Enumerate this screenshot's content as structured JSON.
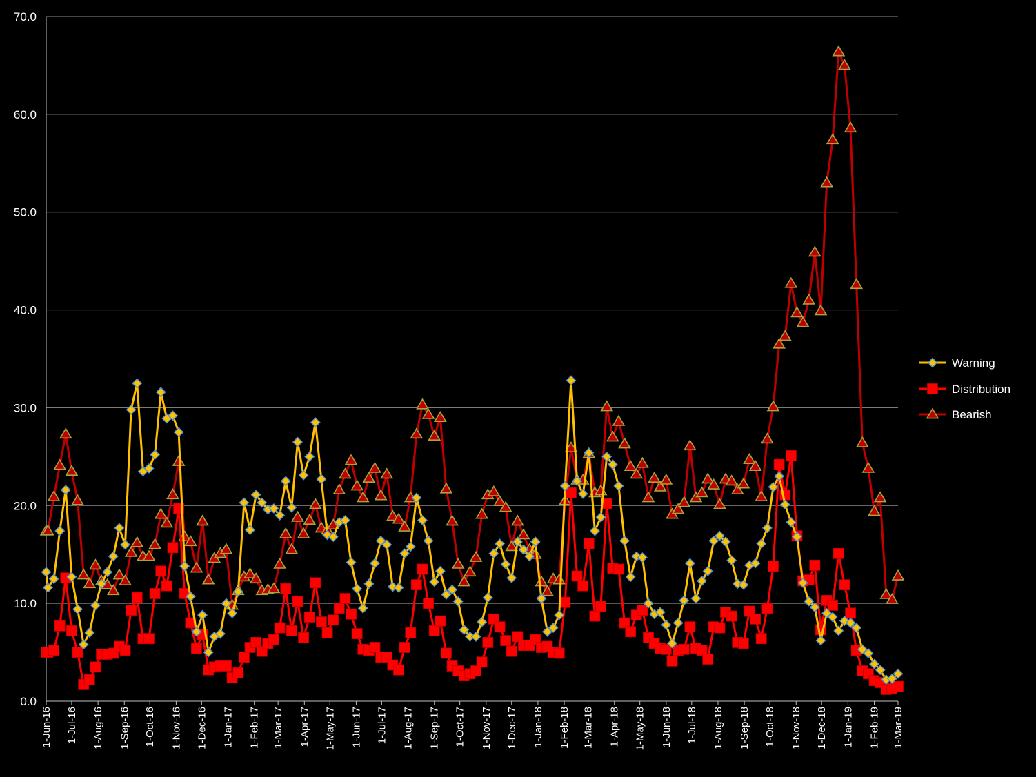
{
  "chart_data": {
    "type": "line",
    "title": "",
    "xlabel": "",
    "ylabel": "",
    "ylim": [
      0,
      70
    ],
    "yticks": [
      "0.0",
      "10.0",
      "20.0",
      "30.0",
      "40.0",
      "50.0",
      "60.0",
      "70.0"
    ],
    "grid": true,
    "legend_position": "right",
    "x_tick_labels": [
      "1-Jun-16",
      "1-Jul-16",
      "1-Aug-16",
      "1-Sep-16",
      "1-Oct-16",
      "1-Nov-16",
      "1-Dec-16",
      "1-Jan-17",
      "1-Feb-17",
      "1-Mar-17",
      "1-Apr-17",
      "1-May-17",
      "1-Jun-17",
      "1-Jul-17",
      "1-Aug-17",
      "1-Sep-17",
      "1-Oct-17",
      "1-Nov-17",
      "1-Dec-17",
      "1-Jan-18",
      "1-Feb-18",
      "1-Mar-18",
      "1-Apr-18",
      "1-May-18",
      "1-Jun-18",
      "1-Jul-18",
      "1-Aug-18",
      "1-Sep-18",
      "1-Oct-18",
      "1-Nov-18",
      "1-Dec-18",
      "1-Jan-19",
      "1-Feb-19",
      "1-Mar-19"
    ],
    "x": [
      "2016-06-01",
      "2016-06-03",
      "2016-06-10",
      "2016-06-17",
      "2016-06-24",
      "2016-07-01",
      "2016-07-08",
      "2016-07-15",
      "2016-07-22",
      "2016-07-29",
      "2016-08-05",
      "2016-08-12",
      "2016-08-19",
      "2016-08-26",
      "2016-09-02",
      "2016-09-09",
      "2016-09-16",
      "2016-09-23",
      "2016-09-30",
      "2016-10-07",
      "2016-10-14",
      "2016-10-21",
      "2016-10-28",
      "2016-11-04",
      "2016-11-11",
      "2016-11-18",
      "2016-11-25",
      "2016-12-02",
      "2016-12-09",
      "2016-12-16",
      "2016-12-23",
      "2016-12-30",
      "2017-01-06",
      "2017-01-13",
      "2017-01-20",
      "2017-01-27",
      "2017-02-03",
      "2017-02-10",
      "2017-02-17",
      "2017-02-24",
      "2017-03-03",
      "2017-03-10",
      "2017-03-17",
      "2017-03-24",
      "2017-03-31",
      "2017-04-07",
      "2017-04-14",
      "2017-04-21",
      "2017-04-28",
      "2017-05-05",
      "2017-05-12",
      "2017-05-19",
      "2017-05-26",
      "2017-06-02",
      "2017-06-09",
      "2017-06-16",
      "2017-06-23",
      "2017-06-30",
      "2017-07-07",
      "2017-07-14",
      "2017-07-21",
      "2017-07-28",
      "2017-08-04",
      "2017-08-11",
      "2017-08-18",
      "2017-08-25",
      "2017-09-01",
      "2017-09-08",
      "2017-09-15",
      "2017-09-22",
      "2017-09-29",
      "2017-10-06",
      "2017-10-13",
      "2017-10-20",
      "2017-10-27",
      "2017-11-03",
      "2017-11-10",
      "2017-11-17",
      "2017-11-24",
      "2017-12-01",
      "2017-12-08",
      "2017-12-15",
      "2017-12-22",
      "2017-12-29",
      "2018-01-05",
      "2018-01-12",
      "2018-01-19",
      "2018-01-26",
      "2018-02-02",
      "2018-02-09",
      "2018-02-16",
      "2018-02-23",
      "2018-03-02",
      "2018-03-09",
      "2018-03-16",
      "2018-03-23",
      "2018-03-30",
      "2018-04-06",
      "2018-04-13",
      "2018-04-20",
      "2018-04-27",
      "2018-05-04",
      "2018-05-11",
      "2018-05-18",
      "2018-05-25",
      "2018-06-01",
      "2018-06-08",
      "2018-06-15",
      "2018-06-22",
      "2018-06-29",
      "2018-07-06",
      "2018-07-13",
      "2018-07-20",
      "2018-07-27",
      "2018-08-03",
      "2018-08-10",
      "2018-08-17",
      "2018-08-24",
      "2018-08-31",
      "2018-09-07",
      "2018-09-14",
      "2018-09-21",
      "2018-09-28",
      "2018-10-05",
      "2018-10-12",
      "2018-10-19",
      "2018-10-26",
      "2018-11-02",
      "2018-11-09",
      "2018-11-16",
      "2018-11-23",
      "2018-11-30",
      "2018-12-07",
      "2018-12-14",
      "2018-12-21",
      "2018-12-28",
      "2019-01-04",
      "2019-01-11",
      "2019-01-18",
      "2019-01-25",
      "2019-02-01",
      "2019-02-08",
      "2019-02-15",
      "2019-02-22",
      "2019-03-01"
    ],
    "series": [
      {
        "name": "Warning",
        "color": "#FFC000",
        "marker": "diamond",
        "values": [
          13.2,
          11.6,
          12.5,
          17.4,
          21.6,
          12.7,
          9.4,
          5.8,
          7.0,
          9.8,
          12.0,
          13.2,
          14.8,
          17.7,
          16.0,
          29.8,
          32.5,
          23.5,
          23.8,
          25.2,
          31.6,
          28.9,
          29.2,
          27.5,
          13.8,
          10.7,
          7.1,
          8.8,
          5.0,
          6.6,
          6.9,
          10.0,
          9.0,
          11.2,
          20.3,
          17.5,
          21.1,
          20.3,
          19.6,
          19.7,
          19.0,
          22.5,
          19.8,
          26.5,
          23.1,
          25.0,
          28.5,
          22.7,
          17.0,
          16.8,
          18.3,
          18.5,
          14.2,
          11.5,
          9.5,
          12.0,
          14.1,
          16.4,
          16.0,
          11.7,
          11.6,
          15.1,
          15.8,
          20.8,
          18.5,
          16.4,
          12.2,
          13.3,
          10.9,
          11.4,
          10.2,
          7.3,
          6.6,
          6.6,
          8.1,
          10.6,
          15.1,
          16.1,
          14.0,
          12.6,
          16.3,
          15.5,
          14.8,
          16.3,
          10.5,
          7.1,
          7.5,
          8.8,
          22.0,
          32.8,
          22.5,
          21.2,
          25.4,
          17.4,
          18.8,
          25.0,
          24.2,
          22.0,
          16.4,
          12.7,
          14.8,
          14.7,
          10.0,
          8.9,
          9.1,
          7.8,
          5.9,
          8.0,
          10.3,
          14.1,
          10.5,
          12.3,
          13.3,
          16.4,
          16.9,
          16.3,
          14.4,
          12.0,
          11.9,
          13.9,
          14.1,
          16.1,
          17.7,
          21.9,
          23.0,
          20.1,
          18.3,
          16.8,
          12.1,
          10.2,
          9.6,
          6.2,
          9.0,
          8.6,
          7.2,
          8.2,
          8.0,
          7.5,
          5.3,
          4.9,
          3.8,
          3.2,
          2.2,
          2.3,
          2.8
        ]
      },
      {
        "name": "Distribution",
        "color": "#FF0000",
        "marker": "square",
        "values": [
          5.0,
          5.0,
          5.2,
          7.7,
          12.6,
          7.2,
          5.0,
          1.7,
          2.2,
          3.5,
          4.8,
          4.8,
          4.9,
          5.6,
          5.2,
          9.3,
          10.6,
          6.4,
          6.4,
          11.0,
          13.3,
          11.8,
          15.7,
          19.7,
          11.0,
          8.0,
          5.4,
          6.8,
          3.2,
          3.5,
          3.6,
          3.6,
          2.4,
          2.9,
          4.5,
          5.5,
          6.0,
          5.1,
          5.9,
          6.3,
          7.5,
          11.5,
          7.2,
          10.2,
          6.5,
          8.6,
          12.1,
          8.1,
          7.0,
          8.3,
          9.5,
          10.5,
          8.9,
          6.9,
          5.3,
          5.2,
          5.5,
          4.5,
          4.5,
          3.7,
          3.2,
          5.5,
          7.0,
          11.9,
          13.5,
          10.0,
          7.2,
          8.2,
          4.9,
          3.6,
          3.1,
          2.6,
          2.8,
          3.1,
          4.0,
          6.0,
          8.4,
          7.6,
          6.2,
          5.1,
          6.6,
          5.7,
          5.7,
          6.3,
          5.5,
          5.6,
          5.0,
          4.9,
          10.1,
          21.3,
          12.8,
          11.8,
          16.1,
          8.7,
          9.7,
          20.2,
          13.6,
          13.5,
          8.0,
          7.1,
          8.8,
          9.3,
          6.5,
          5.9,
          5.4,
          5.3,
          4.1,
          5.2,
          5.3,
          7.6,
          5.4,
          5.2,
          4.3,
          7.6,
          7.5,
          9.1,
          8.7,
          6.0,
          5.9,
          9.2,
          8.4,
          6.4,
          9.5,
          13.8,
          24.2,
          21.1,
          25.1,
          16.9,
          12.3,
          12.4,
          13.9,
          7.3,
          10.3,
          9.8,
          15.1,
          11.9,
          9.0,
          5.2,
          3.1,
          2.8,
          2.1,
          1.9,
          1.2,
          1.3,
          1.5
        ]
      },
      {
        "name": "Bearish",
        "color": "#C00000",
        "marker": "triangle",
        "values": [
          17.4,
          17.4,
          20.9,
          24.1,
          27.3,
          23.5,
          20.5,
          12.9,
          12.0,
          13.9,
          12.3,
          11.9,
          11.3,
          12.9,
          12.3,
          15.2,
          16.2,
          14.8,
          14.8,
          16.0,
          19.1,
          18.2,
          21.1,
          24.5,
          16.8,
          16.3,
          13.6,
          18.4,
          12.4,
          14.6,
          15.1,
          15.5,
          9.8,
          11.3,
          12.7,
          13.0,
          12.5,
          11.3,
          11.4,
          11.5,
          14.0,
          17.1,
          15.5,
          18.8,
          17.1,
          18.5,
          20.1,
          17.7,
          17.5,
          18.0,
          21.6,
          23.2,
          24.6,
          22.0,
          20.8,
          22.8,
          23.8,
          21.0,
          23.2,
          18.9,
          18.6,
          17.8,
          20.8,
          27.3,
          30.3,
          29.3,
          27.1,
          29.0,
          21.7,
          18.4,
          14.0,
          12.2,
          13.2,
          14.7,
          19.1,
          21.1,
          21.4,
          20.4,
          19.8,
          15.8,
          18.4,
          17.0,
          15.5,
          15.0,
          12.2,
          11.2,
          12.5,
          12.4,
          20.5,
          25.9,
          22.6,
          22.6,
          25.3,
          21.3,
          21.5,
          30.1,
          27.0,
          28.6,
          26.3,
          24.0,
          23.2,
          24.3,
          20.8,
          22.8,
          21.9,
          22.6,
          19.1,
          19.6,
          20.3,
          26.1,
          20.8,
          21.3,
          22.7,
          22.1,
          20.1,
          22.7,
          22.5,
          21.6,
          22.2,
          24.7,
          24.0,
          20.9,
          26.8,
          30.1,
          36.5,
          37.3,
          42.7,
          39.7,
          38.7,
          41.0,
          45.9,
          39.9,
          53.0,
          57.4,
          66.4,
          65.0,
          58.6,
          42.6,
          26.4,
          23.8,
          19.4,
          20.8,
          10.9,
          10.4,
          12.8
        ]
      }
    ]
  }
}
